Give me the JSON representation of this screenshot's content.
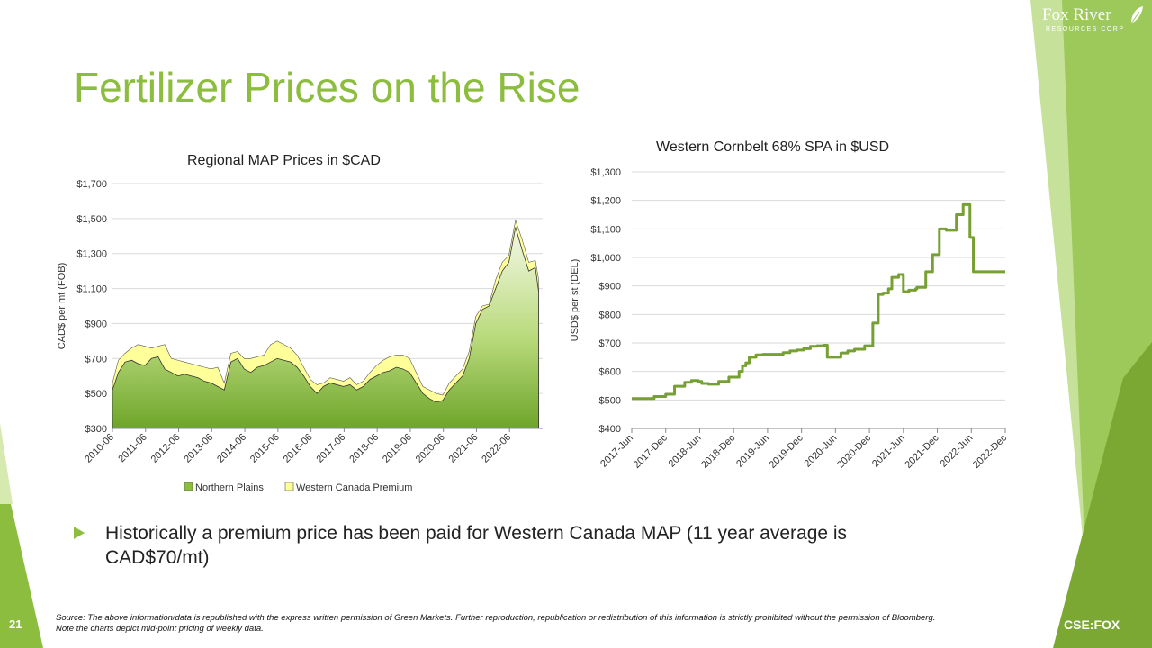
{
  "slide": {
    "title": "Fertilizer Prices on the Rise",
    "logo_name": "Fox River",
    "logo_sub": "RESOURCES CORP",
    "bullet": "Historically a premium price has been paid for Western Canada MAP (11 year average is CAD$70/mt)",
    "footnote": "Source: The above information/data is republished with the express written permission of Green Markets. Further reproduction, republication or redistribution of this information is strictly prohibited without the permission of Bloomberg. Note the charts depict mid-point pricing of weekly data.",
    "page_number": "21",
    "ticker": "CSE:FOX",
    "accent_color": "#8cbd3f",
    "logo_icon": "leaf-icon"
  },
  "chart_data": [
    {
      "type": "area",
      "title": "Regional MAP Prices in $CAD",
      "ylabel": "CAD$ per mt (FOB)",
      "xlabel": "",
      "ylim": [
        300,
        1700
      ],
      "y_ticks": [
        "$300",
        "$500",
        "$700",
        "$900",
        "$1,100",
        "$1,300",
        "$1,500",
        "$1,700"
      ],
      "y_tick_values": [
        300,
        500,
        700,
        900,
        1100,
        1300,
        1500,
        1700
      ],
      "x_ticks": [
        "2010-06",
        "2011-06",
        "2012-06",
        "2013-06",
        "2014-06",
        "2015-06",
        "2016-06",
        "2017-06",
        "2018-06",
        "2019-06",
        "2020-06",
        "2021-06",
        "2022-06"
      ],
      "x_range": [
        2010.42,
        2023.42
      ],
      "grid": true,
      "legend_position": "bottom",
      "colors": {
        "northern_plains": "#8cbd3f",
        "western_canada": "#ffff99",
        "axis": "#888888",
        "grid": "#d9d9d9"
      },
      "x": [
        2010.42,
        2010.6,
        2010.8,
        2011.0,
        2011.2,
        2011.4,
        2011.6,
        2011.8,
        2012.0,
        2012.2,
        2012.4,
        2012.6,
        2012.8,
        2013.0,
        2013.2,
        2013.4,
        2013.6,
        2013.8,
        2014.0,
        2014.2,
        2014.4,
        2014.6,
        2014.8,
        2015.0,
        2015.2,
        2015.4,
        2015.6,
        2015.8,
        2016.0,
        2016.2,
        2016.4,
        2016.6,
        2016.8,
        2017.0,
        2017.2,
        2017.4,
        2017.6,
        2017.8,
        2018.0,
        2018.2,
        2018.4,
        2018.6,
        2018.8,
        2019.0,
        2019.2,
        2019.4,
        2019.6,
        2019.8,
        2020.0,
        2020.2,
        2020.4,
        2020.6,
        2020.8,
        2021.0,
        2021.2,
        2021.4,
        2021.6,
        2021.8,
        2022.0,
        2022.2,
        2022.4,
        2022.6,
        2022.8,
        2023.0,
        2023.2,
        2023.3
      ],
      "series": [
        {
          "name": "Northern Plains",
          "values": [
            520,
            620,
            680,
            690,
            670,
            660,
            700,
            710,
            640,
            620,
            600,
            610,
            600,
            590,
            570,
            560,
            540,
            520,
            680,
            700,
            640,
            620,
            650,
            660,
            680,
            700,
            690,
            680,
            650,
            600,
            540,
            500,
            540,
            560,
            550,
            540,
            550,
            520,
            540,
            580,
            600,
            620,
            630,
            650,
            640,
            620,
            560,
            500,
            470,
            450,
            460,
            520,
            560,
            600,
            700,
            900,
            980,
            1000,
            1100,
            1200,
            1250,
            1450,
            1320,
            1200,
            1220,
            1080
          ]
        },
        {
          "name": "Western Canada Premium",
          "values": [
            560,
            690,
            730,
            760,
            780,
            770,
            760,
            770,
            780,
            700,
            690,
            680,
            670,
            660,
            650,
            640,
            650,
            560,
            730,
            740,
            700,
            700,
            710,
            720,
            780,
            800,
            780,
            760,
            720,
            650,
            580,
            550,
            560,
            590,
            580,
            570,
            590,
            550,
            570,
            620,
            660,
            690,
            710,
            720,
            720,
            700,
            620,
            540,
            520,
            500,
            490,
            560,
            600,
            640,
            740,
            940,
            1000,
            1010,
            1150,
            1250,
            1290,
            1490,
            1380,
            1250,
            1260,
            1150
          ]
        }
      ]
    },
    {
      "type": "line",
      "title": "Western Cornbelt 68% SPA in $USD",
      "ylabel": "USD$ per st (DEL)",
      "xlabel": "",
      "ylim": [
        400,
        1300
      ],
      "y_ticks": [
        "$400",
        "$500",
        "$600",
        "$700",
        "$800",
        "$900",
        "$1,000",
        "$1,100",
        "$1,200",
        "$1,300"
      ],
      "y_tick_values": [
        400,
        500,
        600,
        700,
        800,
        900,
        1000,
        1100,
        1200,
        1300
      ],
      "x_ticks": [
        "2017-Jun",
        "2017-Dec",
        "2018-Jun",
        "2018-Dec",
        "2019-Jun",
        "2019-Dec",
        "2020-Jun",
        "2020-Dec",
        "2021-Jun",
        "2021-Dec",
        "2022-Jun",
        "2022-Dec"
      ],
      "x_range": [
        2017.42,
        2022.92
      ],
      "grid": true,
      "legend_position": "none",
      "colors": {
        "line": "#77a033",
        "axis": "#888888",
        "grid": "#d9d9d9"
      },
      "x": [
        2017.42,
        2017.6,
        2017.75,
        2017.92,
        2018.05,
        2018.2,
        2018.3,
        2018.4,
        2018.45,
        2018.55,
        2018.7,
        2018.85,
        2019.0,
        2019.05,
        2019.1,
        2019.15,
        2019.25,
        2019.35,
        2019.5,
        2019.6,
        2019.65,
        2019.75,
        2019.85,
        2019.95,
        2020.05,
        2020.15,
        2020.25,
        2020.3,
        2020.42,
        2020.5,
        2020.6,
        2020.7,
        2020.85,
        2020.95,
        2020.97,
        2021.05,
        2021.12,
        2021.2,
        2021.25,
        2021.35,
        2021.42,
        2021.5,
        2021.6,
        2021.62,
        2021.75,
        2021.85,
        2021.95,
        2022.05,
        2022.2,
        2022.3,
        2022.35,
        2022.4,
        2022.45,
        2022.6,
        2022.92
      ],
      "series": [
        {
          "name": "",
          "values": [
            505,
            505,
            512,
            520,
            548,
            562,
            568,
            565,
            558,
            555,
            565,
            580,
            600,
            620,
            630,
            650,
            658,
            660,
            660,
            660,
            666,
            672,
            675,
            680,
            688,
            690,
            692,
            650,
            650,
            665,
            672,
            678,
            690,
            690,
            770,
            870,
            875,
            890,
            930,
            940,
            880,
            885,
            890,
            895,
            950,
            1010,
            1100,
            1095,
            1150,
            1185,
            1185,
            1070,
            950,
            950,
            950
          ]
        }
      ]
    }
  ]
}
